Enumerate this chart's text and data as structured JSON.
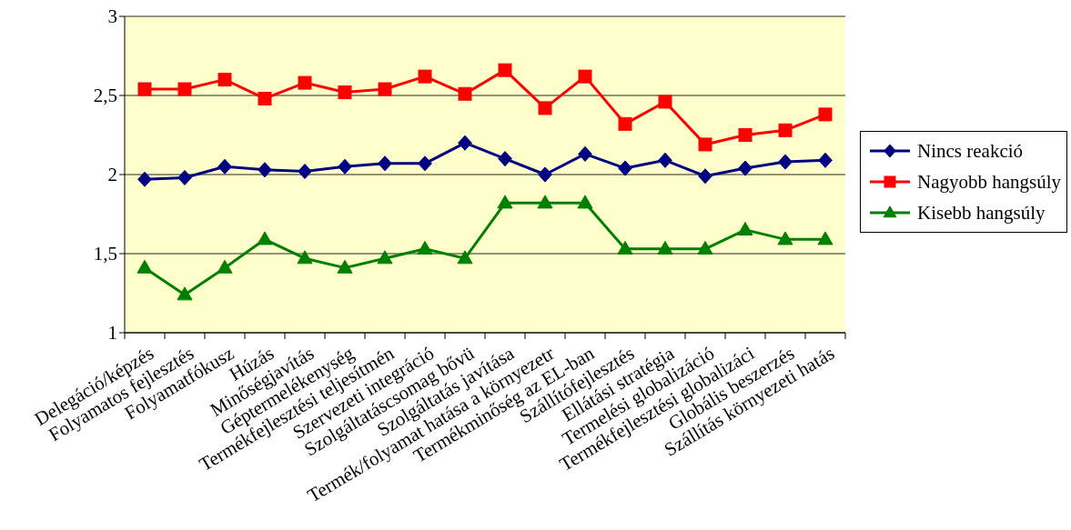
{
  "chart_data": {
    "type": "line",
    "categories": [
      "Delegáció/képzés",
      "Folyamatos fejlesztés",
      "Folyamatfókusz",
      "Húzás",
      "Minőségjavítás",
      "Géptermelékenység",
      "Termékfejlesztési teljesítmén",
      "Szervezeti integráció",
      "Szolgáltatáscsomag bővü",
      "Szolgáltatás javítása",
      "Termék/folyamat hatása a környezetr",
      "Termékminőség az EL-ban",
      "Szállítófejlesztés",
      "Ellátási stratégia",
      "Termelési globalizáció",
      "Termékfejlesztési globalizáci",
      "Globális beszerzés",
      "Szállítás környezeti hatás"
    ],
    "series": [
      {
        "name": "Nincs reakció",
        "color": "#000080",
        "marker": "diamond",
        "values": [
          1.97,
          1.98,
          2.05,
          2.03,
          2.02,
          2.05,
          2.07,
          2.07,
          2.2,
          2.1,
          2.0,
          2.13,
          2.04,
          2.09,
          1.99,
          2.04,
          2.08,
          2.09
        ]
      },
      {
        "name": "Nagyobb hangsúly",
        "color": "#ff0000",
        "marker": "square",
        "values": [
          2.54,
          2.54,
          2.6,
          2.48,
          2.58,
          2.52,
          2.54,
          2.62,
          2.51,
          2.66,
          2.42,
          2.62,
          2.32,
          2.46,
          2.19,
          2.25,
          2.28,
          2.38
        ]
      },
      {
        "name": "Kisebb hangsúly",
        "color": "#008000",
        "marker": "triangle",
        "values": [
          1.41,
          1.24,
          1.41,
          1.59,
          1.47,
          1.41,
          1.47,
          1.53,
          1.47,
          1.82,
          1.82,
          1.82,
          1.53,
          1.53,
          1.53,
          1.65,
          1.59,
          1.59
        ]
      }
    ],
    "ylim": [
      1,
      3
    ],
    "yticks": [
      1,
      {
        "value": 1.5,
        "label": "1,5"
      },
      2,
      {
        "value": 2.5,
        "label": "2,5"
      },
      3
    ],
    "grid": "y",
    "legend": "right",
    "line_style": "solid"
  }
}
